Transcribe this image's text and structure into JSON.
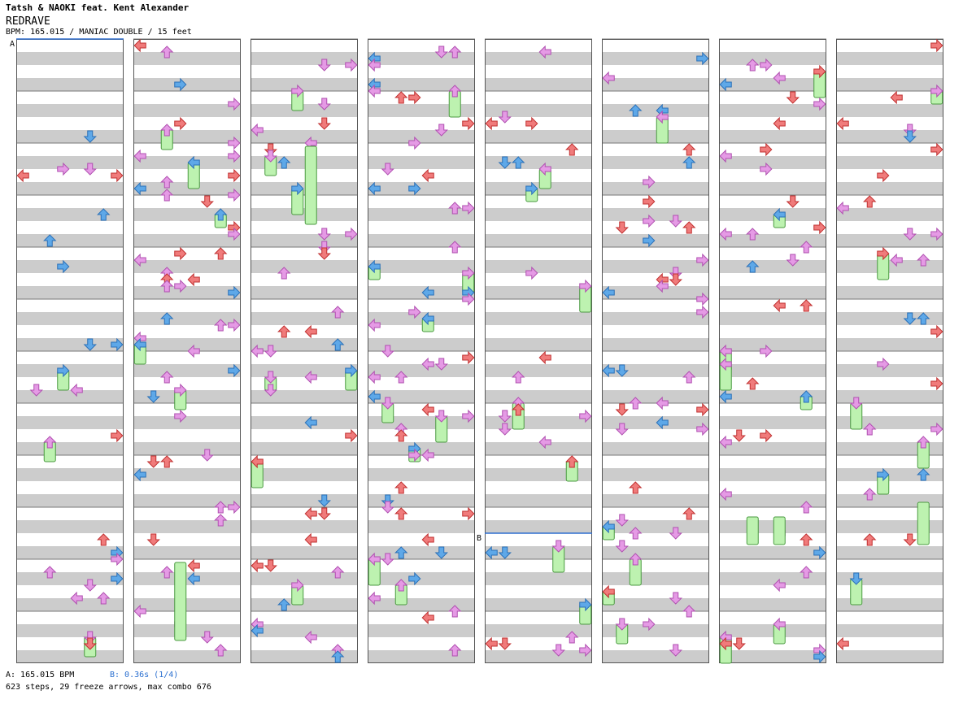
{
  "header": {
    "artist_line": "Tatsh & NAOKI feat. Kent Alexander",
    "song_title": "REDRAVE",
    "info_line": "BPM: 165.015 / MANIAC DOUBLE / 15 feet"
  },
  "markers": {
    "a_label": "A",
    "b_label": "B"
  },
  "footer": {
    "bpm_label": "A: 165.015 BPM",
    "stop_label": "B: 0.36s (1/4)",
    "stats": "623 steps, 29 freeze arrows, max combo 676"
  },
  "colors": {
    "red": "#f07b7b",
    "blue": "#5ea8e8",
    "pink": "#e59ae5",
    "freeze": "#bdf2b0",
    "stripe": "#cccccc",
    "marker_line": "#2f6fcf"
  },
  "chart_data": {
    "type": "step-chart",
    "style": "doubles, 8 lanes per column",
    "columns": 8,
    "measures_per_column": 12,
    "steps": 623,
    "freeze_arrows": 29,
    "max_combo": 676,
    "bpm": 165.015,
    "stop_seconds": 0.36
  }
}
